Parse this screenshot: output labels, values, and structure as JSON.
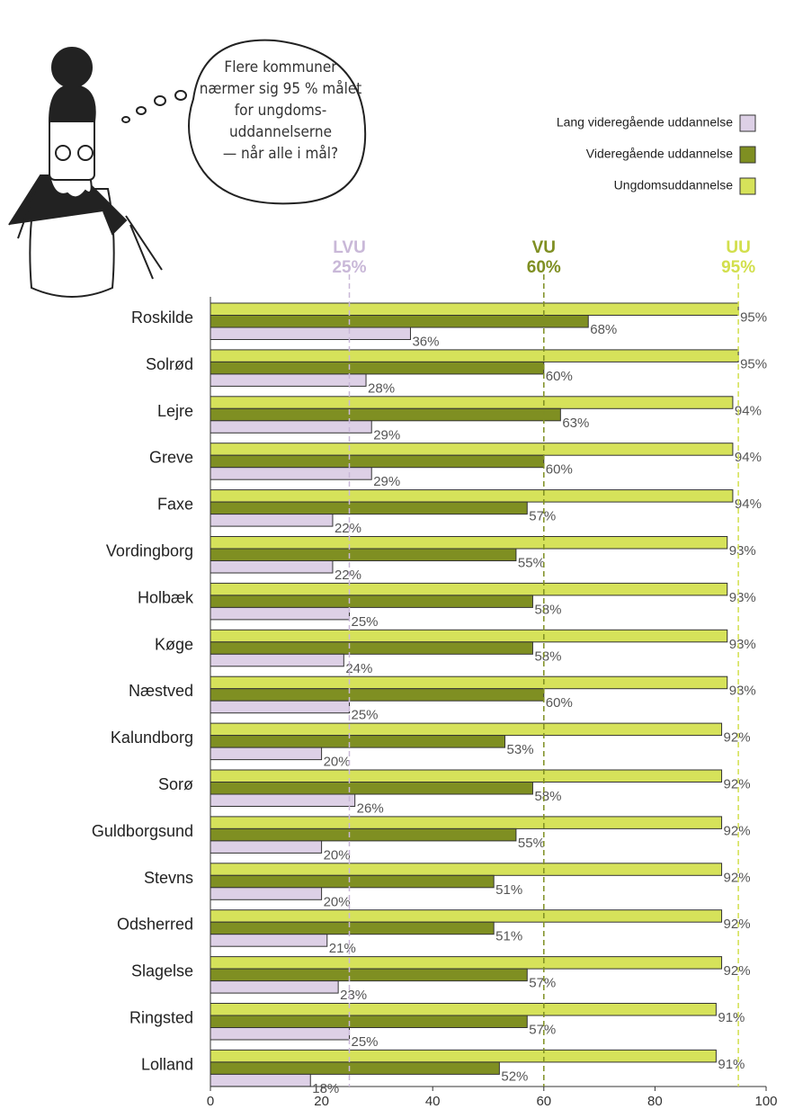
{
  "chart_data": {
    "type": "bar",
    "orientation": "horizontal",
    "bubble": [
      "Flere kommuner",
      "nærmer sig 95 % målet",
      "for ungdoms-",
      "uddannelserne",
      "— når alle i mål?"
    ],
    "categories": [
      "Roskilde",
      "Solrød",
      "Lejre",
      "Greve",
      "Faxe",
      "Vordingborg",
      "Holbæk",
      "Køge",
      "Næstved",
      "Kalundborg",
      "Sorø",
      "Guldborgsund",
      "Stevns",
      "Odsherred",
      "Slagelse",
      "Ringsted",
      "Lolland"
    ],
    "series": [
      {
        "name": "Ungdomsuddannelse",
        "color": "#d6e25a",
        "values": [
          95,
          95,
          94,
          94,
          94,
          93,
          93,
          93,
          93,
          92,
          92,
          92,
          92,
          92,
          92,
          91,
          91
        ],
        "value_labels": [
          "95%",
          "95%",
          "94%",
          "94%",
          "94%",
          "93%",
          "93%",
          "93%",
          "93%",
          "92%",
          "92%",
          "92%",
          "92%",
          "92%",
          "92%",
          "91%",
          "91%"
        ]
      },
      {
        "name": "Videregående uddannelse",
        "color": "#7f8f22",
        "values": [
          68,
          60,
          63,
          60,
          57,
          55,
          58,
          58,
          60,
          53,
          58,
          55,
          51,
          51,
          57,
          57,
          52
        ],
        "value_labels": [
          "68%",
          "60%",
          "63%",
          "60%",
          "57%",
          "55%",
          "58%",
          "58%",
          "60%",
          "53%",
          "58%",
          "55%",
          "51%",
          "51%",
          "57%",
          "57%",
          "52%"
        ]
      },
      {
        "name": "Lang videregående uddannelse",
        "color": "#ddd0e6",
        "values": [
          36,
          28,
          29,
          29,
          22,
          22,
          25,
          24,
          25,
          20,
          26,
          20,
          20,
          21,
          23,
          25,
          18
        ],
        "value_labels": [
          "36%",
          "28%",
          "29%",
          "29%",
          "22%",
          "22%",
          "25%",
          "24%",
          "25%",
          "20%",
          "26%",
          "20%",
          "20%",
          "21%",
          "23%",
          "25%",
          "18%"
        ]
      }
    ],
    "reference_lines": [
      {
        "name": "LVU",
        "value": 25,
        "label": "25%",
        "color": "#c9b8d8"
      },
      {
        "name": "VU",
        "value": 60,
        "label": "60%",
        "color": "#7f8f22"
      },
      {
        "name": "UU",
        "value": 95,
        "label": "95%",
        "color": "#d2df4c"
      }
    ],
    "xlim": [
      0,
      100
    ],
    "xticks": [
      0,
      20,
      40,
      60,
      80,
      100
    ],
    "legend": "top-right"
  }
}
